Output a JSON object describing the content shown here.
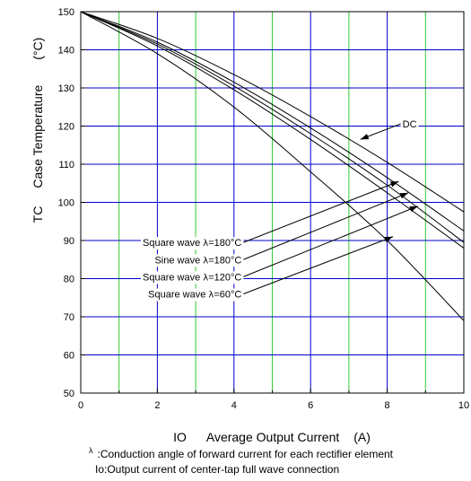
{
  "chart_data": {
    "type": "line",
    "xlabel_symbol": "IO",
    "xlabel": "Average Output Current",
    "xlabel_unit": "(A)",
    "ylabel_symbol": "TC",
    "ylabel": "Case Temperature",
    "ylabel_unit": "(°C)",
    "xlim": [
      0,
      10
    ],
    "ylim": [
      50,
      150
    ],
    "x_ticks": [
      "0",
      "2",
      "4",
      "6",
      "8",
      "10"
    ],
    "y_ticks": [
      "50",
      "60",
      "70",
      "80",
      "90",
      "100",
      "110",
      "120",
      "130",
      "140",
      "150"
    ],
    "grid": true,
    "grid_colors": {
      "odd_x": "#33cc33",
      "even_x": "#0000cc",
      "y": "#0000cc"
    },
    "series": [
      {
        "name": "DC",
        "label": "DC",
        "x": [
          0,
          2,
          4,
          6,
          8,
          10
        ],
        "y": [
          150,
          143,
          133.5,
          122.5,
          110.5,
          97.5
        ]
      },
      {
        "name": "Square wave λ=180°C",
        "prefix": "Square wave ",
        "lambda": "λ",
        "suffix": "=180°C",
        "x": [
          0,
          2,
          4,
          6,
          8,
          10
        ],
        "y": [
          150,
          142,
          131.5,
          119.5,
          106.5,
          92.5
        ]
      },
      {
        "name": "Sine wave λ=180°C",
        "prefix": "Sine wave ",
        "lambda": "λ",
        "suffix": "=180°C",
        "x": [
          0,
          2,
          4,
          6,
          8,
          10
        ],
        "y": [
          150,
          141.5,
          130.5,
          118,
          104.5,
          89.5
        ]
      },
      {
        "name": "Square wave λ=120°C",
        "prefix": "Square wave ",
        "lambda": "λ",
        "suffix": "=120°C",
        "x": [
          0,
          2,
          4,
          6,
          8,
          10
        ],
        "y": [
          150,
          141,
          129.5,
          116.5,
          102.5,
          88
        ]
      },
      {
        "name": "Square wave λ=60°C",
        "prefix": "Square wave ",
        "lambda": "λ",
        "suffix": "=60°C",
        "x": [
          0,
          2,
          4,
          6,
          8,
          10
        ],
        "y": [
          150,
          139,
          125,
          108,
          90,
          69
        ]
      }
    ],
    "annotations": [
      {
        "series": "DC",
        "text_at": [
          8.4,
          120.6
        ],
        "arrow_to": [
          7.3,
          116.5
        ]
      },
      {
        "series": "Square wave λ=180°C",
        "text_at": [
          4.2,
          89.5
        ],
        "arrow_to": [
          8.3,
          105.5
        ]
      },
      {
        "series": "Sine wave λ=180°C",
        "text_at": [
          4.2,
          85
        ],
        "arrow_to": [
          8.55,
          102.5
        ]
      },
      {
        "series": "Square wave λ=120°C",
        "text_at": [
          4.2,
          80.5
        ],
        "arrow_to": [
          8.8,
          99
        ]
      },
      {
        "series": "Square wave λ=60°C",
        "text_at": [
          4.2,
          76
        ],
        "arrow_to": [
          8.15,
          91
        ]
      }
    ]
  },
  "notes": {
    "lambda_symbol": "λ",
    "lambda_text": ":Conduction angle of forward current for each rectifier element",
    "io_text": "Io:Output current of center-tap full wave connection"
  }
}
